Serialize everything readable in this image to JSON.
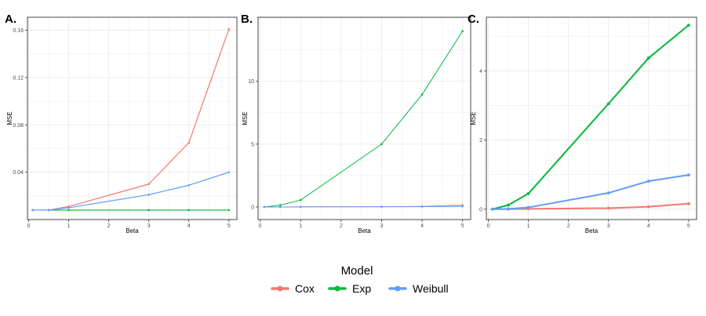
{
  "colors": {
    "Cox": "#F8766D",
    "Exp": "#00BA38",
    "Weibull": "#619CFF",
    "panel_border": "#333333",
    "grid": "#ebebeb"
  },
  "legend": {
    "title": "Model",
    "items": [
      {
        "name": "Cox",
        "color": "#F8766D"
      },
      {
        "name": "Exp",
        "color": "#00BA38"
      },
      {
        "name": "Weibull",
        "color": "#619CFF"
      }
    ]
  },
  "chart_data": [
    {
      "type": "line",
      "panel_label": "A.",
      "xlabel": "Beta",
      "ylabel": "MSE",
      "xlim": [
        -0.03,
        5.2
      ],
      "ylim": [
        0.0,
        0.171
      ],
      "xticks": [
        0,
        1,
        2,
        3,
        4,
        5
      ],
      "xtick_labels": [
        "0",
        "1",
        "2",
        "3",
        "4",
        "5"
      ],
      "yticks": [
        0.04,
        0.08,
        0.12,
        0.16
      ],
      "ytick_labels": [
        "0.04",
        "0.08",
        "0.12",
        "0.16"
      ],
      "grid": true,
      "line_width": 1.2,
      "x": [
        0.1,
        0.5,
        1,
        3,
        4,
        5
      ],
      "series": [
        {
          "name": "Cox",
          "values": [
            0.008,
            0.008,
            0.011,
            0.03,
            0.065,
            0.161
          ]
        },
        {
          "name": "Exp",
          "values": [
            0.008,
            0.008,
            0.008,
            0.008,
            0.008,
            0.008
          ]
        },
        {
          "name": "Weibull",
          "values": [
            0.008,
            0.008,
            0.01,
            0.021,
            0.029,
            0.04
          ]
        }
      ]
    },
    {
      "type": "line",
      "panel_label": "B.",
      "xlabel": "Beta",
      "ylabel": "MSE",
      "xlim": [
        -0.05,
        5.2
      ],
      "ylim": [
        -1.0,
        15.1
      ],
      "xticks": [
        0,
        1,
        2,
        3,
        4,
        5
      ],
      "xtick_labels": [
        "0",
        "1",
        "2",
        "3",
        "4",
        "5"
      ],
      "yticks": [
        0,
        5,
        10
      ],
      "ytick_labels": [
        "0",
        "5",
        "10"
      ],
      "grid": true,
      "line_width": 1.0,
      "x": [
        0.1,
        0.5,
        1,
        3,
        4,
        5
      ],
      "series": [
        {
          "name": "Cox",
          "values": [
            0.0,
            0.0,
            0.01,
            0.02,
            0.05,
            0.15
          ]
        },
        {
          "name": "Exp",
          "values": [
            0.0,
            0.15,
            0.55,
            5.0,
            8.95,
            14.0
          ]
        },
        {
          "name": "Weibull",
          "values": [
            0.0,
            0.0,
            0.01,
            0.02,
            0.03,
            0.05
          ]
        }
      ]
    },
    {
      "type": "line",
      "panel_label": "C.",
      "xlabel": "Beta",
      "ylabel": "MSE",
      "xlim": [
        -0.05,
        5.2
      ],
      "ylim": [
        -0.3,
        5.55
      ],
      "xticks": [
        0,
        1,
        2,
        3,
        4,
        5
      ],
      "xtick_labels": [
        "0",
        "1",
        "2",
        "3",
        "4",
        "5"
      ],
      "yticks": [
        0,
        2,
        4
      ],
      "ytick_labels": [
        "0",
        "2",
        "4"
      ],
      "grid": true,
      "line_width": 2.0,
      "x": [
        0.1,
        0.5,
        1,
        3,
        4,
        5
      ],
      "series": [
        {
          "name": "Cox",
          "values": [
            0.0,
            0.0,
            0.01,
            0.03,
            0.07,
            0.16
          ]
        },
        {
          "name": "Exp",
          "values": [
            0.0,
            0.12,
            0.45,
            3.05,
            4.37,
            5.32
          ]
        },
        {
          "name": "Weibull",
          "values": [
            0.0,
            0.01,
            0.05,
            0.47,
            0.81,
            0.99
          ]
        }
      ]
    }
  ]
}
